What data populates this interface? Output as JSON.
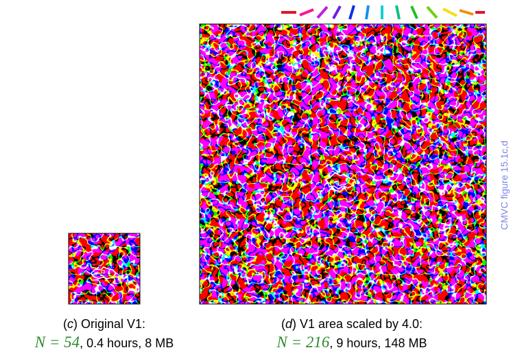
{
  "side_note": "CMVC figure 15.1c,d",
  "panels": [
    {
      "open": "(",
      "letter": "c",
      "title": ") Original V1:",
      "n_label": "N = 54",
      "details": ", 0.4 hours, 8 MB"
    },
    {
      "open": "(",
      "letter": "d",
      "title": ") V1 area scaled by 4.0:",
      "n_label": "N = 216",
      "details": ", 9 hours, 148 MB"
    }
  ]
}
